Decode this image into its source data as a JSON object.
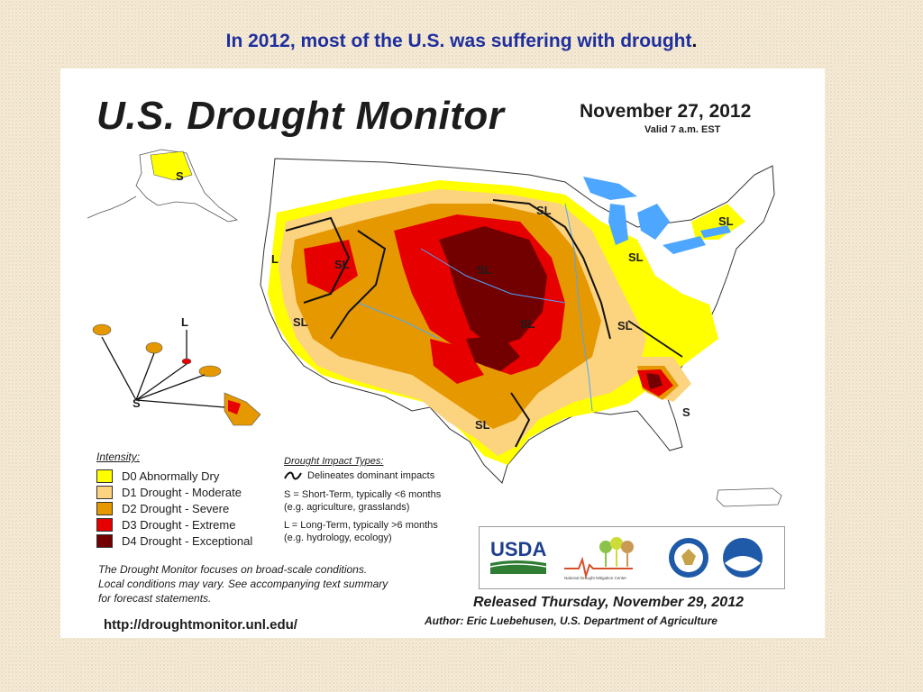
{
  "slide": {
    "title": "In 2012, most of the U.S. was suffering with drought",
    "title_end": "."
  },
  "monitor": {
    "heading": "U.S. Drought Monitor",
    "date": "November 27, 2012",
    "valid": "Valid 7 a.m. EST",
    "region_labels": {
      "SL": "SL",
      "L": "L",
      "S": "S"
    }
  },
  "legend": {
    "title": "Intensity:",
    "items": [
      {
        "label": "D0 Abnormally Dry",
        "color": "#ffff00"
      },
      {
        "label": "D1 Drought - Moderate",
        "color": "#fcd37f"
      },
      {
        "label": "D2 Drought - Severe",
        "color": "#e69800"
      },
      {
        "label": "D3 Drought - Extreme",
        "color": "#e60000"
      },
      {
        "label": "D4 Drought - Exceptional",
        "color": "#730000"
      }
    ]
  },
  "impact_types": {
    "title": "Drought Impact Types:",
    "delineates": "Delineates dominant impacts",
    "short_term_1": "S = Short-Term, typically <6 months",
    "short_term_2": "(e.g. agriculture, grasslands)",
    "long_term_1": "L = Long-Term, typically >6 months",
    "long_term_2": "(e.g. hydrology, ecology)"
  },
  "note": {
    "line1": "The Drought Monitor focuses on broad-scale conditions.",
    "line2": "Local conditions may vary. See accompanying text summary",
    "line3": "for forecast statements."
  },
  "url": "http://droughtmonitor.unl.edu/",
  "logos": {
    "usda": "USDA",
    "ndmc": "National Drought Mitigation Center"
  },
  "released": "Released Thursday, November 29, 2012",
  "author": "Author: Eric Luebehusen, U.S. Department of Agriculture",
  "colors": {
    "water": "#4da6ff",
    "title_blue": "#1f2f9e"
  }
}
